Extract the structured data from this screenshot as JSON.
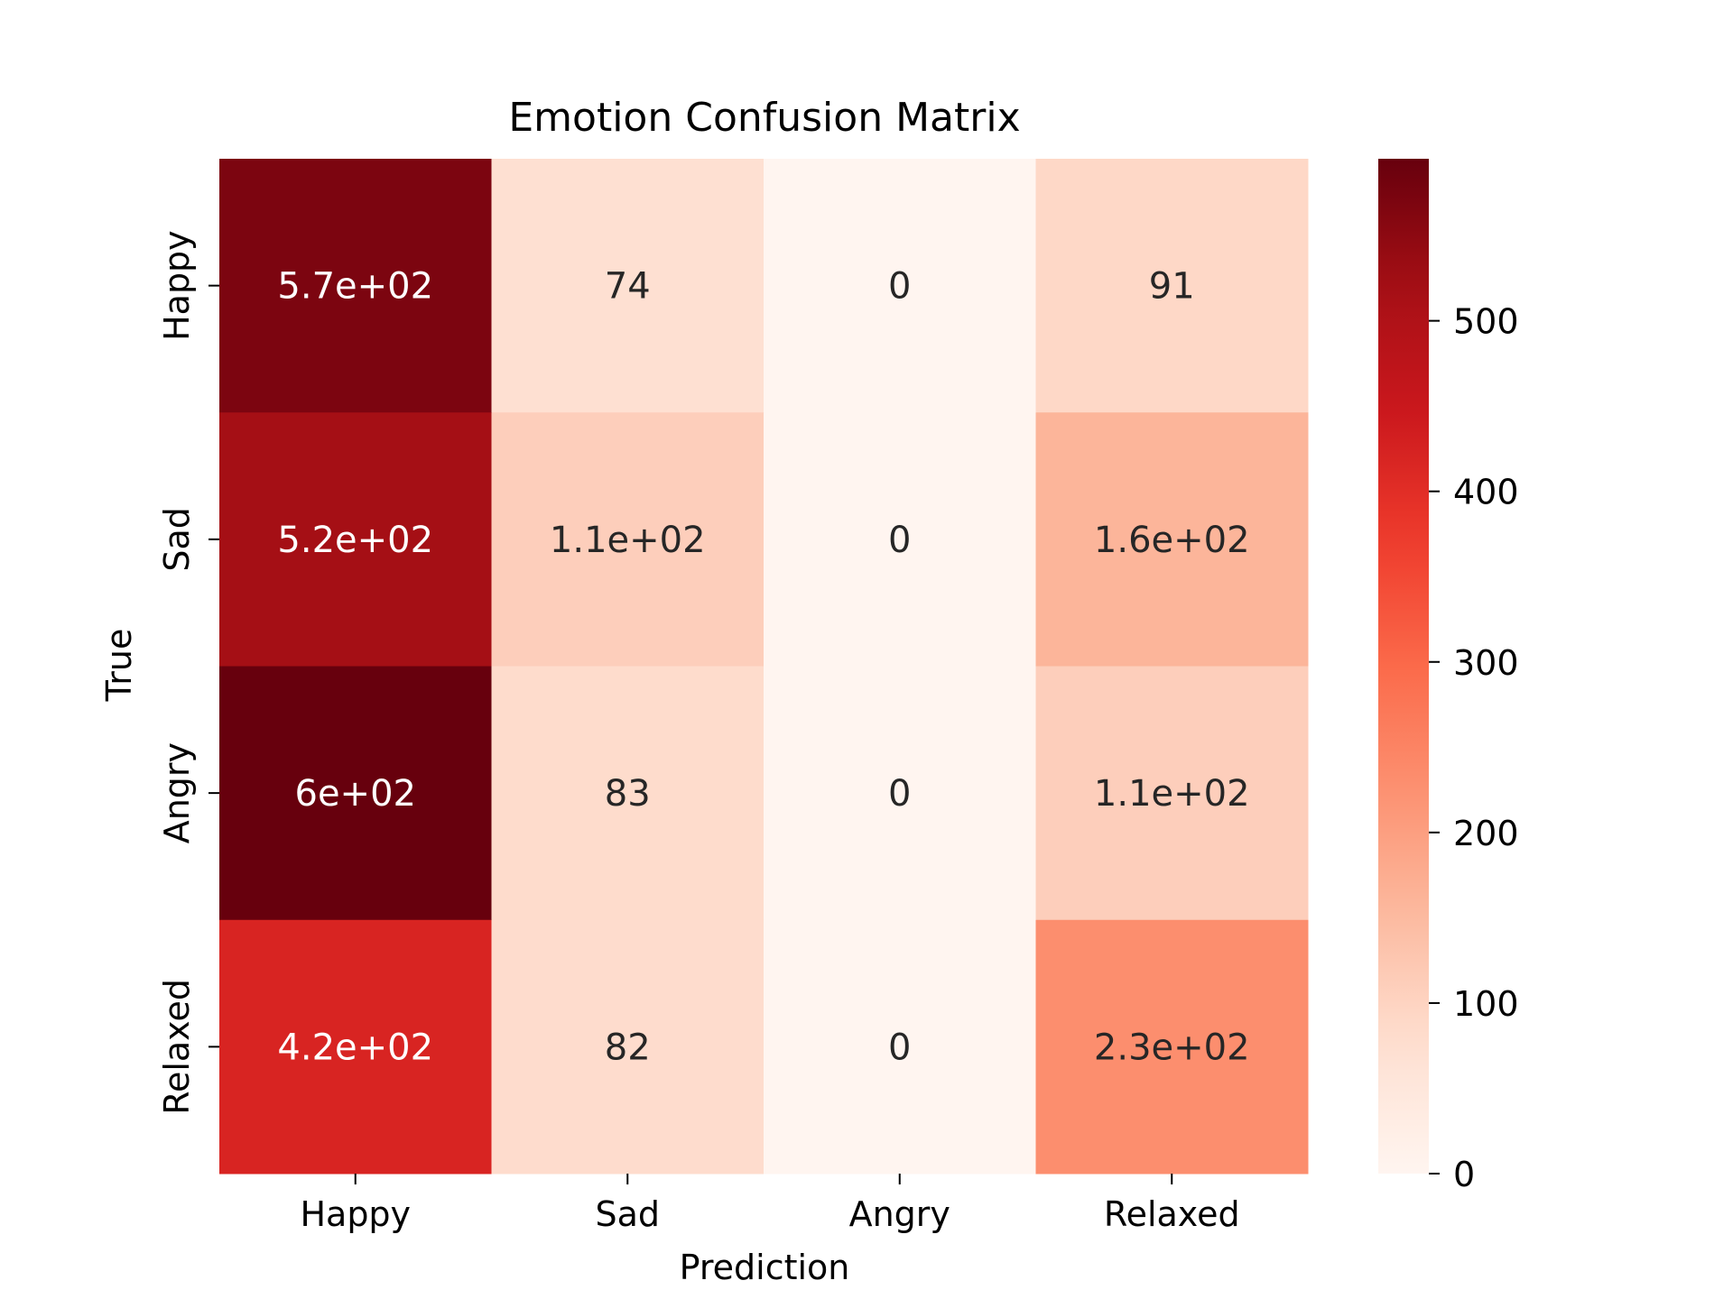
{
  "chart_data": {
    "type": "heatmap",
    "title": "Emotion Confusion Matrix",
    "xlabel": "Prediction",
    "ylabel": "True",
    "x_categories": [
      "Happy",
      "Sad",
      "Angry",
      "Relaxed"
    ],
    "y_categories": [
      "Happy",
      "Sad",
      "Angry",
      "Relaxed"
    ],
    "values": [
      [
        570,
        74,
        0,
        91
      ],
      [
        520,
        110,
        0,
        160
      ],
      [
        600,
        83,
        0,
        110
      ],
      [
        420,
        82,
        0,
        230
      ]
    ],
    "cell_labels": [
      [
        "5.7e+02",
        "74",
        "0",
        "91"
      ],
      [
        "5.2e+02",
        "1.1e+02",
        "0",
        "1.6e+02"
      ],
      [
        "6e+02",
        "83",
        "0",
        "1.1e+02"
      ],
      [
        "4.2e+02",
        "82",
        "0",
        "2.3e+02"
      ]
    ],
    "colormap": "Reds",
    "colorbar": {
      "range": [
        0,
        595
      ],
      "ticks": [
        0,
        100,
        200,
        300,
        400,
        500
      ],
      "tick_labels": [
        "0",
        "100",
        "200",
        "300",
        "400",
        "500"
      ]
    },
    "grid": false
  }
}
